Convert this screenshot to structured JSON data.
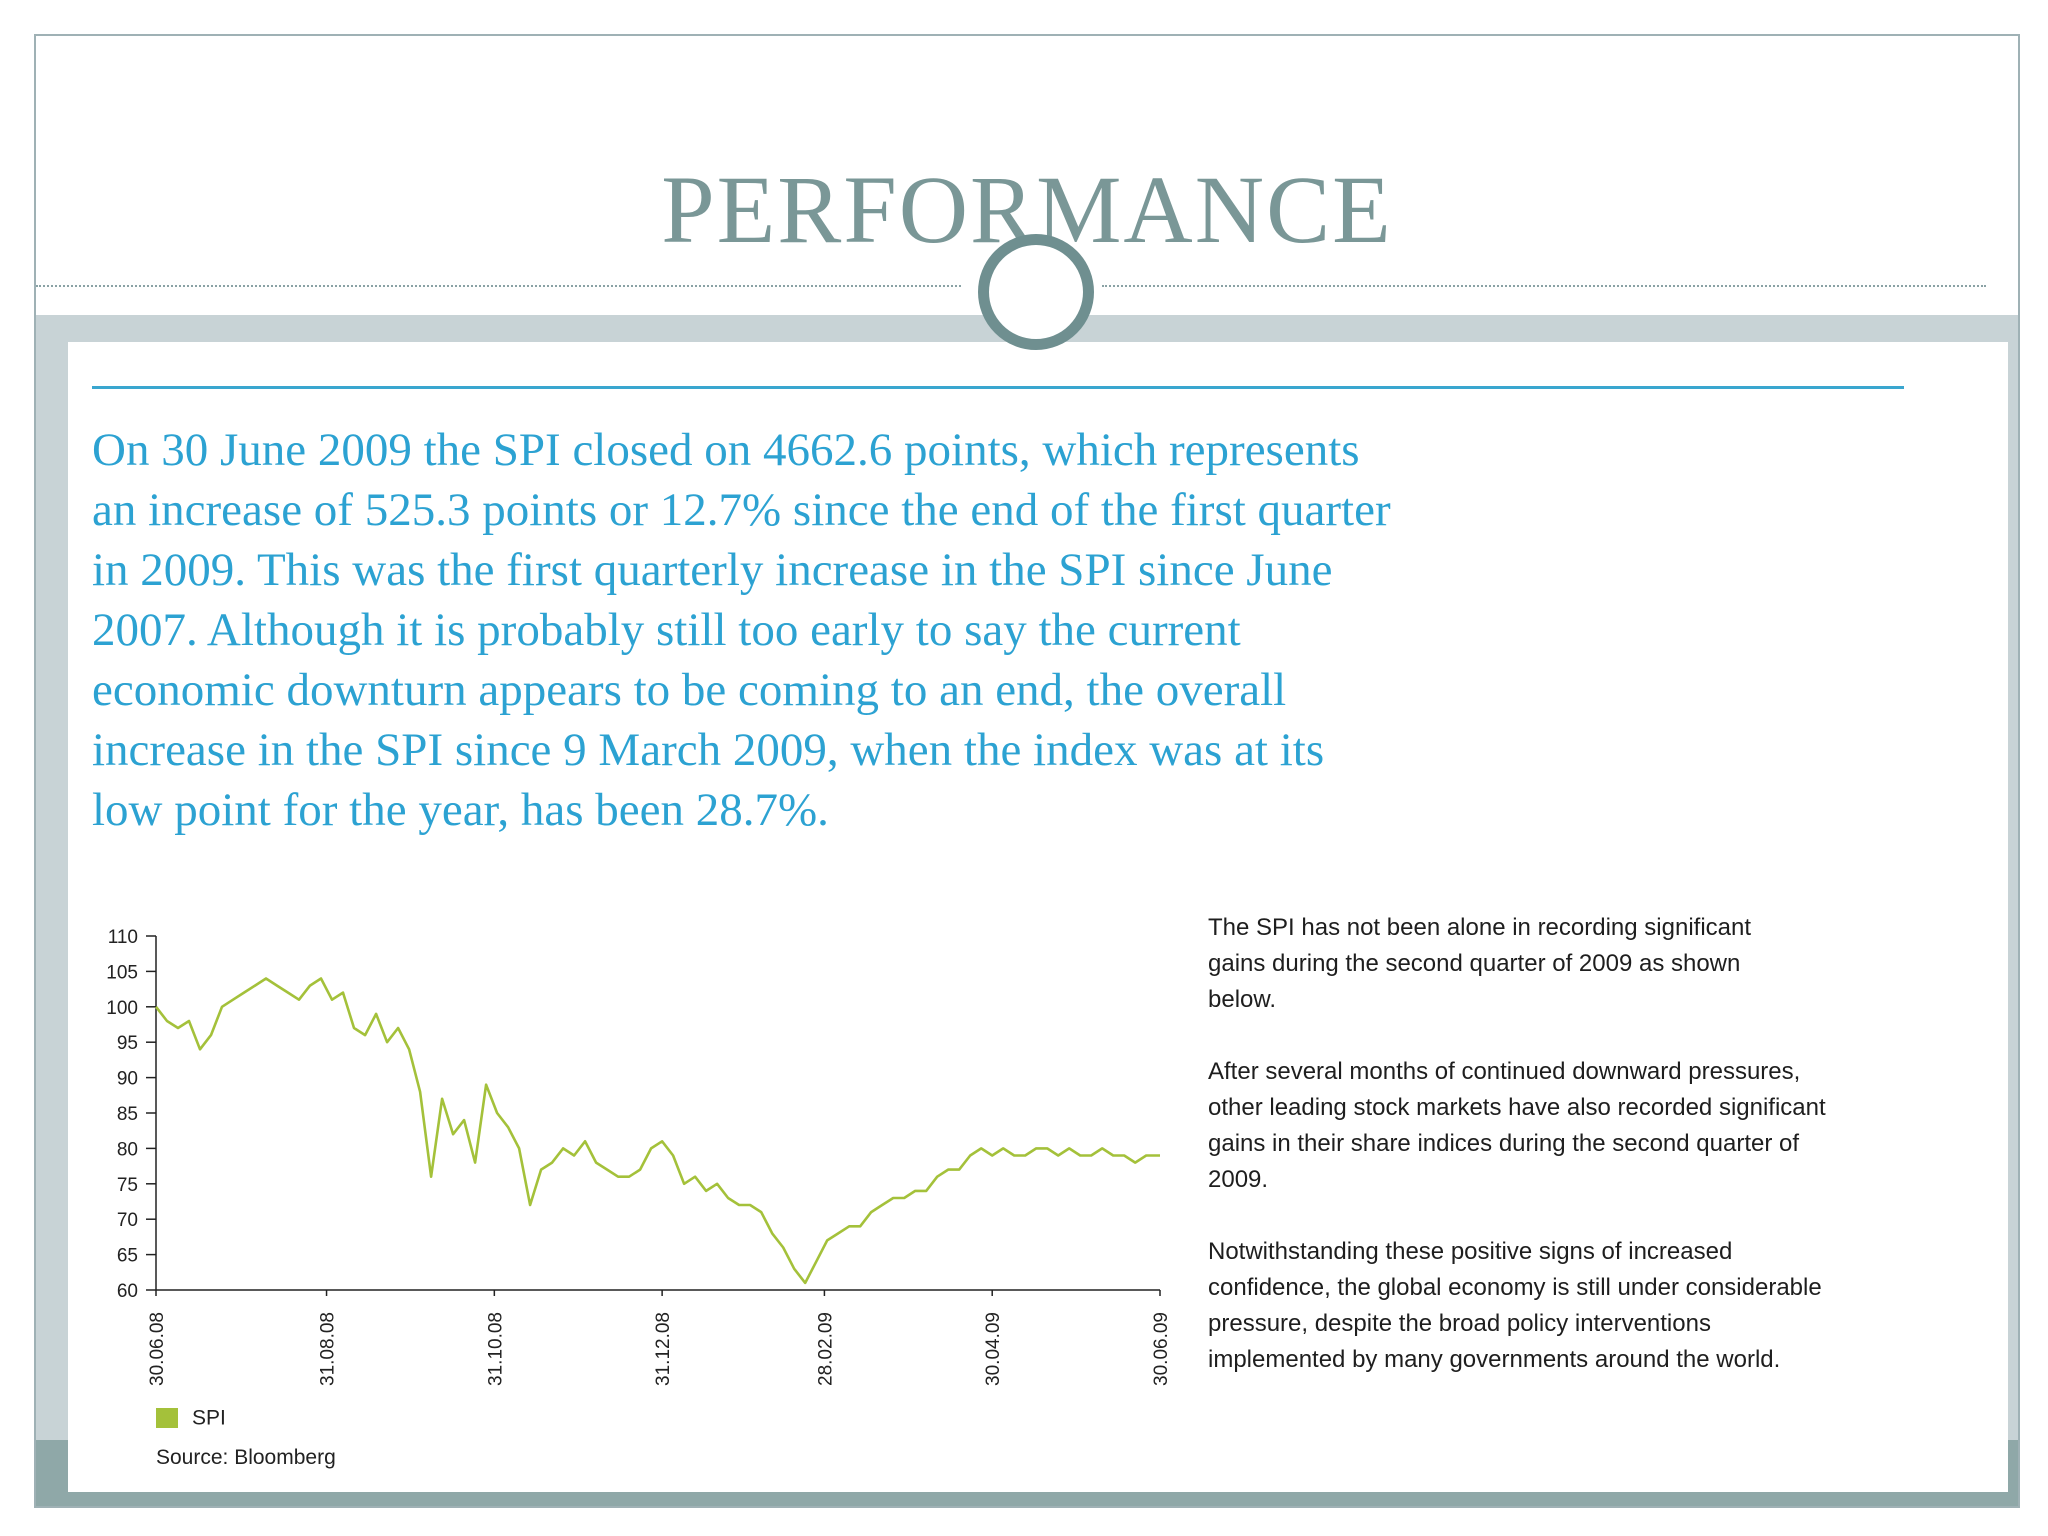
{
  "slide": {
    "title": "PERFORMANCE"
  },
  "lead": {
    "lines": [
      "On 30 June 2009 the SPI closed on 4662.6 points, which represents",
      "an increase of 525.3 points or 12.7% since the end of the first quarter",
      "in 2009. This was the first quarterly increase in the SPI since June",
      "2007. Although it is probably still too early to say the current",
      "economic downturn appears to be coming to an end, the overall",
      "increase in the SPI since 9 March 2009, when the index was at its",
      "low point for the year, has been 28.7%."
    ]
  },
  "side_text": {
    "paragraphs": [
      [
        "The SPI has not been alone in recording significant",
        "gains during the second quarter of 2009 as shown",
        "below."
      ],
      [
        "After several months of continued downward pressures,",
        "other leading stock markets have also recorded significant",
        "gains in their share indices during the second quarter of",
        "2009."
      ],
      [
        "Notwithstanding these positive signs of increased",
        "confidence, the global economy is still under considerable",
        "pressure, despite the broad policy interventions",
        "implemented by many governments around the world."
      ]
    ]
  },
  "colors": {
    "title": "#7a9797",
    "lead_text": "#2ca2d2",
    "series_line": "#a4c13a",
    "band": "#c8d3d6"
  },
  "icons": {
    "divider_ornament": "ring-icon"
  },
  "chart_data": {
    "type": "line",
    "title": "",
    "xlabel": "",
    "ylabel": "",
    "ylim": [
      60,
      110
    ],
    "yticks": [
      60,
      65,
      70,
      75,
      80,
      85,
      90,
      95,
      100,
      105,
      110
    ],
    "xlim": [
      "30.06.08",
      "30.06.09"
    ],
    "xticks": [
      "30.06.08",
      "31.08.08",
      "31.10.08",
      "31.12.08",
      "28.02.09",
      "30.04.09",
      "30.06.09"
    ],
    "grid": false,
    "legend": "bottom-left",
    "series": [
      {
        "name": "SPI",
        "x": [
          "30.06.08",
          "04.07.08",
          "08.07.08",
          "12.07.08",
          "16.07.08",
          "20.07.08",
          "24.07.08",
          "28.07.08",
          "01.08.08",
          "05.08.08",
          "09.08.08",
          "13.08.08",
          "17.08.08",
          "21.08.08",
          "25.08.08",
          "29.08.08",
          "02.09.08",
          "06.09.08",
          "10.09.08",
          "14.09.08",
          "18.09.08",
          "22.09.08",
          "26.09.08",
          "30.09.08",
          "04.10.08",
          "08.10.08",
          "12.10.08",
          "16.10.08",
          "20.10.08",
          "24.10.08",
          "28.10.08",
          "01.11.08",
          "05.11.08",
          "09.11.08",
          "13.11.08",
          "17.11.08",
          "21.11.08",
          "25.11.08",
          "29.11.08",
          "03.12.08",
          "07.12.08",
          "11.12.08",
          "15.12.08",
          "19.12.08",
          "23.12.08",
          "27.12.08",
          "31.12.08",
          "04.01.09",
          "08.01.09",
          "12.01.09",
          "16.01.09",
          "20.01.09",
          "24.01.09",
          "28.01.09",
          "01.02.09",
          "05.02.09",
          "09.02.09",
          "13.02.09",
          "17.02.09",
          "21.02.09",
          "25.02.09",
          "01.03.09",
          "05.03.09",
          "09.03.09",
          "13.03.09",
          "17.03.09",
          "21.03.09",
          "25.03.09",
          "29.03.09",
          "02.04.09",
          "06.04.09",
          "10.04.09",
          "14.04.09",
          "18.04.09",
          "22.04.09",
          "26.04.09",
          "30.04.09",
          "04.05.09",
          "08.05.09",
          "12.05.09",
          "16.05.09",
          "20.05.09",
          "24.05.09",
          "28.05.09",
          "01.06.09",
          "05.06.09",
          "09.06.09",
          "13.06.09",
          "17.06.09",
          "21.06.09",
          "25.06.09",
          "30.06.09"
        ],
        "values": [
          100,
          98,
          97,
          98,
          94,
          96,
          100,
          101,
          102,
          103,
          104,
          103,
          102,
          101,
          103,
          104,
          101,
          102,
          97,
          96,
          99,
          95,
          97,
          94,
          88,
          76,
          87,
          82,
          84,
          78,
          89,
          85,
          83,
          80,
          72,
          77,
          78,
          80,
          79,
          81,
          78,
          77,
          76,
          76,
          77,
          80,
          81,
          79,
          75,
          76,
          74,
          75,
          73,
          72,
          72,
          71,
          68,
          66,
          63,
          61,
          64,
          67,
          68,
          69,
          69,
          71,
          72,
          73,
          73,
          74,
          74,
          76,
          77,
          77,
          79,
          80,
          79,
          80,
          79,
          79,
          80,
          80,
          79,
          80,
          79,
          79,
          80,
          79,
          79,
          78,
          79,
          79
        ]
      }
    ]
  },
  "chart_text": {
    "legend_label": "SPI",
    "source": "Source: Bloomberg"
  }
}
